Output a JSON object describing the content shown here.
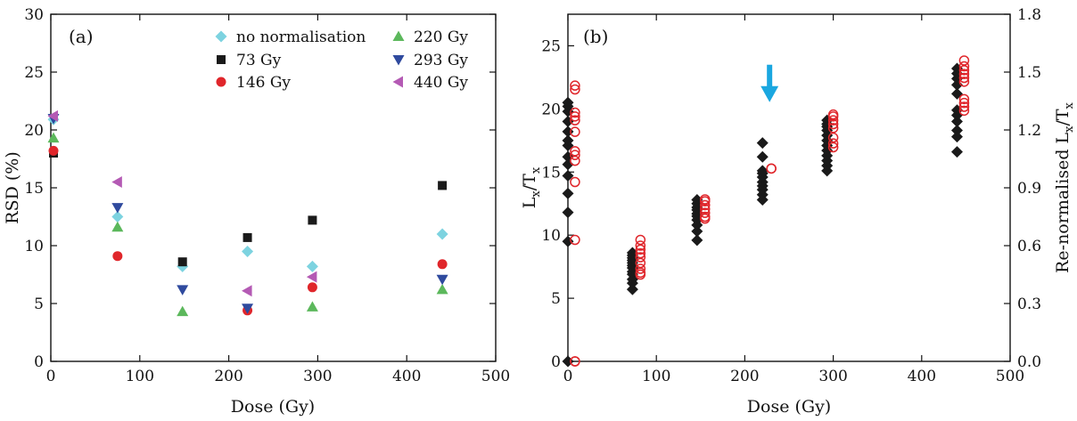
{
  "chart_data": [
    {
      "type": "scatter",
      "panel_label": "(a)",
      "xlabel": "Dose (Gy)",
      "ylabel": "RSD (%)",
      "xlim": [
        0,
        500
      ],
      "ylim": [
        0,
        30
      ],
      "xticks": [
        0,
        100,
        200,
        300,
        400,
        500
      ],
      "yticks": [
        0,
        5,
        10,
        15,
        20,
        25,
        30
      ],
      "legend_position": "top-right",
      "series": [
        {
          "name": "no normalisation",
          "marker": "diamond",
          "color": "#7dd3e0",
          "x": [
            3,
            75,
            148,
            221,
            294,
            440
          ],
          "y": [
            20.9,
            12.5,
            8.2,
            9.5,
            8.2,
            11.0
          ]
        },
        {
          "name": "73 Gy",
          "marker": "square",
          "color": "#1a1a1a",
          "x": [
            3,
            148,
            221,
            294,
            440
          ],
          "y": [
            18.0,
            8.6,
            10.7,
            12.2,
            15.2
          ]
        },
        {
          "name": "146 Gy",
          "marker": "circle",
          "color": "#e0262b",
          "x": [
            3,
            75,
            221,
            294,
            440
          ],
          "y": [
            18.2,
            9.1,
            4.4,
            6.4,
            8.4
          ]
        },
        {
          "name": "220 Gy",
          "marker": "triangle-up",
          "color": "#5cb85c",
          "x": [
            3,
            75,
            148,
            294,
            440
          ],
          "y": [
            19.3,
            11.6,
            4.3,
            4.7,
            6.2
          ]
        },
        {
          "name": "293 Gy",
          "marker": "triangle-down",
          "color": "#2f4a9e",
          "x": [
            3,
            75,
            148,
            221,
            440
          ],
          "y": [
            21.0,
            13.3,
            6.2,
            4.6,
            7.1
          ]
        },
        {
          "name": "440 Gy",
          "marker": "triangle-left",
          "color": "#b45ab4",
          "x": [
            3,
            75,
            221,
            294
          ],
          "y": [
            21.2,
            15.5,
            6.1,
            7.3
          ]
        }
      ]
    },
    {
      "type": "scatter",
      "panel_label": "(b)",
      "xlabel": "Dose (Gy)",
      "ylabel": "Lx/Tx",
      "y2label": "Re-normalised Lx/Tx",
      "xlim": [
        0,
        500
      ],
      "ylim": [
        0,
        27.5
      ],
      "y2lim": [
        0,
        1.8
      ],
      "xticks": [
        0,
        100,
        200,
        300,
        400,
        500
      ],
      "yticks": [
        0,
        5,
        10,
        15,
        20,
        25
      ],
      "y2ticks": [
        0.0,
        0.3,
        0.6,
        0.9,
        1.2,
        1.5,
        1.8
      ],
      "annotation": {
        "type": "arrow",
        "color": "#1aa7e0",
        "x": 228,
        "y": 23.5,
        "direction": "down"
      },
      "series": [
        {
          "name": "Lx/Tx",
          "axis": "left",
          "marker": "diamond",
          "color": "#1a1a1a",
          "x": [
            0,
            0,
            0,
            0,
            0,
            0,
            0,
            0,
            0,
            0,
            0,
            0,
            0,
            0,
            73,
            73,
            73,
            73,
            73,
            73,
            73,
            73,
            73,
            73,
            73,
            73,
            146,
            146,
            146,
            146,
            146,
            146,
            146,
            146,
            146,
            146,
            220,
            220,
            220,
            220,
            220,
            220,
            220,
            220,
            220,
            220,
            293,
            293,
            293,
            293,
            293,
            293,
            293,
            293,
            293,
            293,
            293,
            293,
            440,
            440,
            440,
            440,
            440,
            440,
            440,
            440,
            440,
            440,
            440
          ],
          "y": [
            0,
            9.5,
            11.8,
            13.3,
            14.7,
            15.6,
            16.2,
            17.1,
            17.5,
            18.2,
            19.0,
            19.8,
            20.2,
            20.5,
            5.7,
            6.2,
            6.5,
            6.9,
            7.1,
            7.4,
            7.6,
            7.8,
            8.0,
            8.2,
            8.4,
            8.6,
            9.6,
            10.3,
            10.8,
            11.2,
            11.5,
            11.7,
            12.0,
            12.2,
            12.5,
            12.8,
            12.8,
            13.2,
            13.6,
            13.9,
            14.2,
            14.6,
            14.9,
            15.1,
            16.2,
            17.3,
            15.1,
            15.5,
            15.9,
            16.3,
            16.7,
            17.1,
            17.5,
            17.9,
            18.3,
            18.6,
            18.8,
            19.1,
            16.6,
            17.8,
            18.3,
            19.0,
            19.5,
            19.9,
            21.2,
            21.9,
            22.4,
            22.8,
            23.2
          ]
        },
        {
          "name": "Re-normalised Lx/Tx",
          "axis": "right",
          "marker": "open-circle",
          "color": "#e0262b",
          "x": [
            8,
            8,
            8,
            8,
            8,
            8,
            8,
            8,
            8,
            8,
            8,
            8,
            8,
            82,
            82,
            82,
            82,
            82,
            82,
            82,
            82,
            82,
            155,
            155,
            155,
            155,
            155,
            155,
            155,
            230,
            230,
            300,
            300,
            300,
            300,
            300,
            300,
            300,
            300,
            448,
            448,
            448,
            448,
            448,
            448,
            448,
            448,
            448,
            448
          ],
          "y": [
            0,
            0.63,
            0.93,
            1.04,
            1.07,
            1.09,
            1.19,
            1.25,
            1.27,
            1.29,
            1.41,
            1.43,
            0,
            0.45,
            0.46,
            0.48,
            0.51,
            0.54,
            0.56,
            0.58,
            0.6,
            0.63,
            0.74,
            0.75,
            0.77,
            0.79,
            0.81,
            0.83,
            0.84,
            1.0,
            1.0,
            1.11,
            1.13,
            1.16,
            1.21,
            1.23,
            1.25,
            1.27,
            1.28,
            1.3,
            1.32,
            1.34,
            1.36,
            1.45,
            1.47,
            1.49,
            1.51,
            1.53,
            1.56
          ]
        }
      ]
    }
  ]
}
